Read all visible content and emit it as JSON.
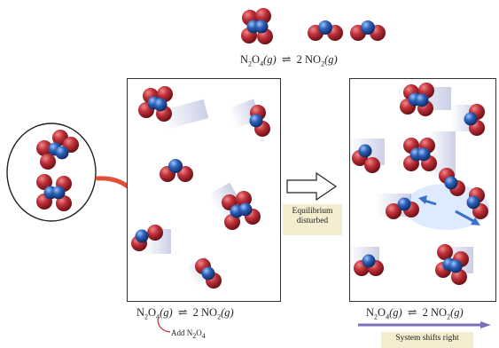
{
  "top_equation": {
    "left": "N",
    "left_sub1": "2",
    "left_mid": "O",
    "left_sub2": "4",
    "left_state": "(g)",
    "arrow": "⇌",
    "right": "2 NO",
    "right_sub": "2",
    "right_state": "(g)"
  },
  "left_equation": {
    "left": "N",
    "left_sub1": "2",
    "left_mid": "O",
    "left_sub2": "4",
    "left_state": "(g)",
    "arrow": "⇌",
    "right": "2 NO",
    "right_sub": "2",
    "right_state": "(g)"
  },
  "right_equation": {
    "left": "N",
    "left_sub1": "2",
    "left_mid": "O",
    "left_sub2": "4",
    "left_state": "(g)",
    "arrow": "⇌",
    "right": "2 NO",
    "right_sub": "2",
    "right_state": "(g)"
  },
  "add_label": {
    "prefix": "Add N",
    "sub1": "2",
    "mid": "O",
    "sub2": "4"
  },
  "equilibrium_label": {
    "line1": "Equilibrium",
    "line2": "disturbed"
  },
  "shift_label": "System shifts right",
  "colors": {
    "oxygen": "#b8282e",
    "nitrogen": "#2457a6",
    "label_bg": "#f4edcf",
    "shift_arrow": "#7a6fb8",
    "add_arrow": "#e0503a"
  }
}
